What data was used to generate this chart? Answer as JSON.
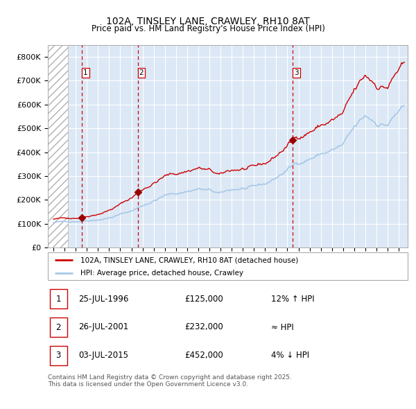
{
  "title": "102A, TINSLEY LANE, CRAWLEY, RH10 8AT",
  "subtitle": "Price paid vs. HM Land Registry's House Price Index (HPI)",
  "legend_line1": "102A, TINSLEY LANE, CRAWLEY, RH10 8AT (detached house)",
  "legend_line2": "HPI: Average price, detached house, Crawley",
  "sale_color": "#cc0000",
  "hpi_color": "#a8c8e8",
  "vline_color": "#cc0000",
  "marker_color": "#990000",
  "bg_color": "#dce8f5",
  "hatch_color": "#b0b0b0",
  "grid_color": "#ffffff",
  "footer_color": "#555555",
  "transactions": [
    {
      "label": "1",
      "date_x": 1996.57,
      "price": 125000,
      "note": "12% ↑ HPI",
      "date_str": "25-JUL-1996"
    },
    {
      "label": "2",
      "date_x": 2001.57,
      "price": 232000,
      "note": "≈ HPI",
      "date_str": "26-JUL-2001"
    },
    {
      "label": "3",
      "date_x": 2015.5,
      "price": 452000,
      "note": "4% ↓ HPI",
      "date_str": "03-JUL-2015"
    }
  ],
  "ylim": [
    0,
    850000
  ],
  "yticks": [
    0,
    100000,
    200000,
    300000,
    400000,
    500000,
    600000,
    700000,
    800000
  ],
  "xlim_start": 1993.5,
  "xlim_end": 2025.8,
  "hatch_end": 1995.3,
  "footer_text": "Contains HM Land Registry data © Crown copyright and database right 2025.\nThis data is licensed under the Open Government Licence v3.0."
}
